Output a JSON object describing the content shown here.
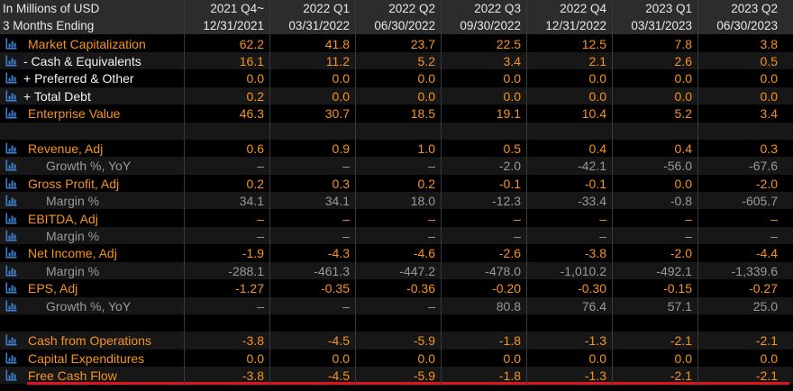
{
  "header": {
    "units_label": "In Millions of USD",
    "period_label": "3 Months Ending",
    "columns": [
      {
        "quarter": "2021 Q4~",
        "date": "12/31/2021"
      },
      {
        "quarter": "2022 Q1",
        "date": "03/31/2022"
      },
      {
        "quarter": "2022 Q2",
        "date": "06/30/2022"
      },
      {
        "quarter": "2022 Q3",
        "date": "09/30/2022"
      },
      {
        "quarter": "2022 Q4",
        "date": "12/31/2022"
      },
      {
        "quarter": "2023 Q1",
        "date": "03/31/2023"
      },
      {
        "quarter": "2023 Q2",
        "date": "06/30/2023"
      }
    ]
  },
  "rows": [
    {
      "label": "Market Capitalization",
      "style": "orange",
      "icon": "bar-chart-icon",
      "values": [
        "62.2",
        "41.8",
        "23.7",
        "22.5",
        "12.5",
        "7.8",
        "3.8"
      ]
    },
    {
      "label": "- Cash & Equivalents",
      "style": "white",
      "icon": "bar-chart-icon",
      "values": [
        "16.1",
        "11.2",
        "5.2",
        "3.4",
        "2.1",
        "2.6",
        "0.5"
      ]
    },
    {
      "label": "+ Preferred & Other",
      "style": "white",
      "icon": "bar-chart-icon",
      "values": [
        "0.0",
        "0.0",
        "0.0",
        "0.0",
        "0.0",
        "0.0",
        "0.0"
      ]
    },
    {
      "label": "+ Total Debt",
      "style": "white",
      "icon": "bar-chart-icon",
      "values": [
        "0.2",
        "0.0",
        "0.0",
        "0.0",
        "0.0",
        "0.0",
        "0.0"
      ]
    },
    {
      "label": "Enterprise Value",
      "style": "orange",
      "icon": "bar-chart-icon",
      "values": [
        "46.3",
        "30.7",
        "18.5",
        "19.1",
        "10.4",
        "5.2",
        "3.4"
      ]
    },
    {
      "label": "",
      "style": "blank",
      "icon": "",
      "values": []
    },
    {
      "label": "Revenue, Adj",
      "style": "orange",
      "icon": "bar-chart-icon",
      "values": [
        "0.6",
        "0.9",
        "1.0",
        "0.5",
        "0.4",
        "0.4",
        "0.3"
      ]
    },
    {
      "label": "Growth %, YoY",
      "style": "grey",
      "icon": "bar-chart-icon",
      "values": [
        "–",
        "–",
        "–",
        "-2.0",
        "-42.1",
        "-56.0",
        "-67.6"
      ]
    },
    {
      "label": "Gross Profit, Adj",
      "style": "orange",
      "icon": "bar-chart-icon",
      "values": [
        "0.2",
        "0.3",
        "0.2",
        "-0.1",
        "-0.1",
        "0.0",
        "-2.0"
      ]
    },
    {
      "label": "Margin %",
      "style": "grey",
      "icon": "bar-chart-icon",
      "values": [
        "34.1",
        "34.1",
        "18.0",
        "-12.3",
        "-33.4",
        "-0.8",
        "-605.7"
      ]
    },
    {
      "label": "EBITDA, Adj",
      "style": "orange",
      "icon": "bar-chart-icon",
      "values": [
        "–",
        "–",
        "–",
        "–",
        "–",
        "–",
        "–"
      ]
    },
    {
      "label": "Margin %",
      "style": "grey",
      "icon": "bar-chart-icon",
      "values": [
        "–",
        "–",
        "–",
        "–",
        "–",
        "–",
        "–"
      ]
    },
    {
      "label": "Net Income, Adj",
      "style": "orange",
      "icon": "bar-chart-icon",
      "values": [
        "-1.9",
        "-4.3",
        "-4.6",
        "-2.6",
        "-3.8",
        "-2.0",
        "-4.4"
      ]
    },
    {
      "label": "Margin %",
      "style": "grey",
      "icon": "bar-chart-icon",
      "values": [
        "-288.1",
        "-461.3",
        "-447.2",
        "-478.0",
        "-1,010.2",
        "-492.1",
        "-1,339.6"
      ]
    },
    {
      "label": "EPS, Adj",
      "style": "orange",
      "icon": "bar-chart-icon",
      "values": [
        "-1.27",
        "-0.35",
        "-0.36",
        "-0.20",
        "-0.30",
        "-0.15",
        "-0.27"
      ]
    },
    {
      "label": "Growth %, YoY",
      "style": "grey",
      "icon": "bar-chart-icon",
      "values": [
        "–",
        "–",
        "–",
        "80.8",
        "76.4",
        "57.1",
        "25.0"
      ]
    },
    {
      "label": "",
      "style": "blank",
      "icon": "",
      "values": []
    },
    {
      "label": "Cash from Operations",
      "style": "orange",
      "icon": "bar-chart-icon",
      "values": [
        "-3.8",
        "-4.5",
        "-5.9",
        "-1.8",
        "-1.3",
        "-2.1",
        "-2.1"
      ]
    },
    {
      "label": "Capital Expenditures",
      "style": "orange",
      "icon": "bar-chart-icon",
      "values": [
        "0.0",
        "0.0",
        "0.0",
        "0.0",
        "0.0",
        "0.0",
        "0.0"
      ]
    },
    {
      "label": "Free Cash Flow",
      "style": "orange",
      "icon": "bar-chart-icon",
      "values": [
        "-3.8",
        "-4.5",
        "-5.9",
        "-1.8",
        "-1.3",
        "-2.1",
        "-2.1"
      ]
    }
  ],
  "colors": {
    "label_orange": "#f7931e",
    "text_white": "#f2f2f2",
    "text_grey": "#9a9a9a",
    "icon_blue": "#3f7fd0",
    "highlight_red": "#e0141e",
    "header_bg": "#2c2c2c",
    "background": "#000000"
  }
}
